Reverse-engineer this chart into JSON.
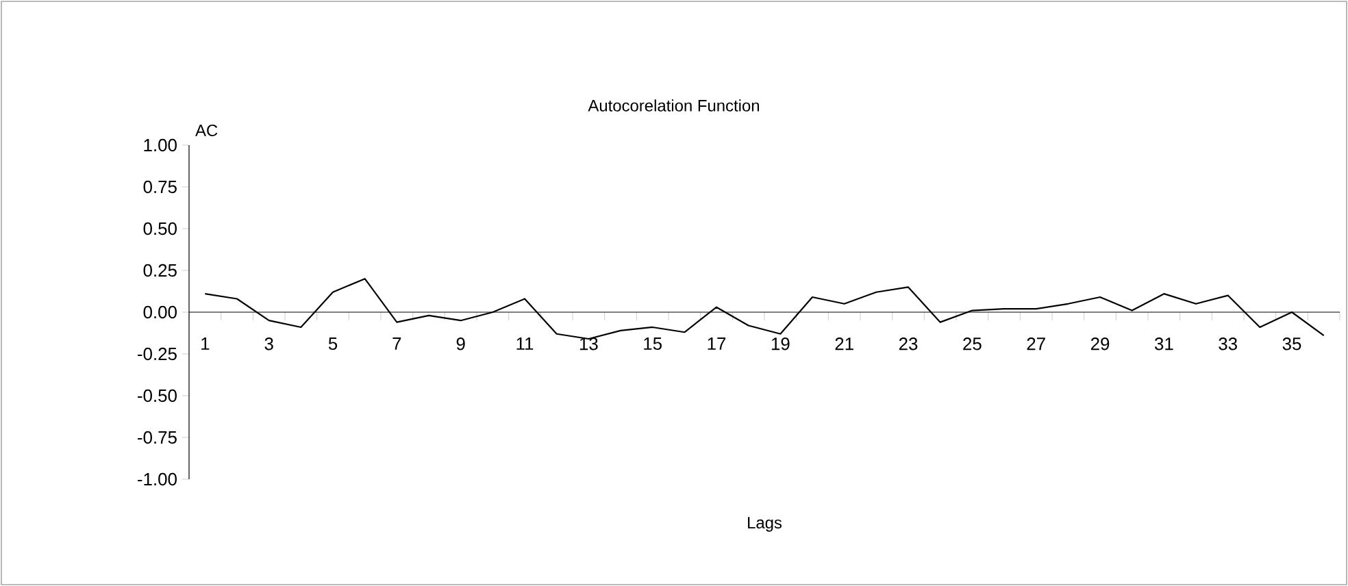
{
  "chart_data": {
    "type": "line",
    "title": "Autocorelation Function",
    "xlabel": "Lags",
    "ylabel": "AC",
    "categories": [
      "1",
      null,
      "3",
      null,
      "5",
      null,
      "7",
      null,
      "9",
      null,
      "11",
      null,
      "13",
      null,
      "15",
      null,
      "17",
      null,
      "19",
      null,
      "21",
      null,
      "23",
      null,
      "25",
      null,
      "27",
      null,
      "29",
      null,
      "31",
      null,
      "33",
      null,
      "35",
      null
    ],
    "series": [
      {
        "color": "#000000",
        "values": [
          0.11,
          0.08,
          -0.05,
          -0.09,
          0.12,
          0.2,
          -0.06,
          -0.02,
          -0.05,
          0.0,
          0.08,
          -0.13,
          -0.16,
          -0.11,
          -0.09,
          -0.12,
          0.03,
          -0.08,
          -0.13,
          0.09,
          0.05,
          0.12,
          0.15,
          -0.06,
          0.01,
          0.02,
          0.02,
          0.05,
          0.09,
          0.01,
          0.11,
          0.05,
          0.1,
          -0.09,
          0.0,
          -0.14
        ]
      }
    ],
    "ylim": [
      -1,
      1
    ],
    "yticks": [
      {
        "value": -1,
        "label": "-1.00"
      },
      {
        "value": -0.75,
        "label": "-0.75"
      },
      {
        "value": -0.5,
        "label": "-0.50"
      },
      {
        "value": -0.25,
        "label": "-0.25"
      },
      {
        "value": 0,
        "label": "0.00"
      },
      {
        "value": 0.25,
        "label": "0.25"
      },
      {
        "value": 0.5,
        "label": "0.50"
      },
      {
        "value": 0.75,
        "label": "0.75"
      },
      {
        "value": 1,
        "label": "1.00"
      }
    ],
    "grid": false,
    "marker": "none",
    "line_style": "solid"
  }
}
